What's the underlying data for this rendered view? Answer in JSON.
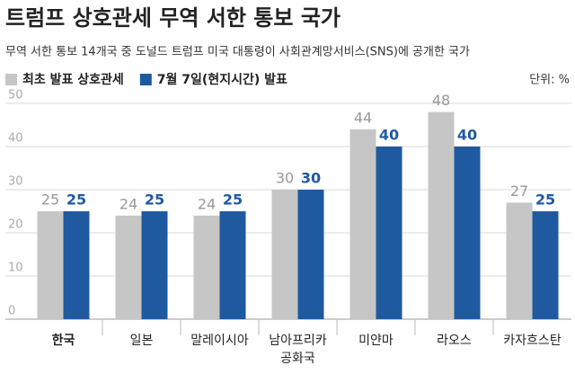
{
  "chart_data": {
    "type": "bar",
    "title": "트럼프 상호관세 무역 서한 통보 국가",
    "subtitle": "무역 서한 통보 14개국 중 도널드 트럼프 미국 대통령이 사회관계망서비스(SNS)에 공개한 국가",
    "unit": "단위: %",
    "categories": [
      "한국",
      "일본",
      "말레이시아",
      "남아프리카\n공화국",
      "미얀마",
      "라오스",
      "카자흐스탄"
    ],
    "series": [
      {
        "name": "최초 발표 상호관세",
        "color": "#c6c6c6",
        "values": [
          25,
          24,
          24,
          30,
          44,
          48,
          27
        ]
      },
      {
        "name": "7월 7일(현지시간) 발표",
        "color": "#1f5aa0",
        "values": [
          25,
          25,
          25,
          30,
          40,
          40,
          25
        ]
      }
    ],
    "ylim": [
      0,
      50
    ],
    "yticks": [
      0,
      10,
      20,
      30,
      40,
      50
    ],
    "grid": true
  }
}
